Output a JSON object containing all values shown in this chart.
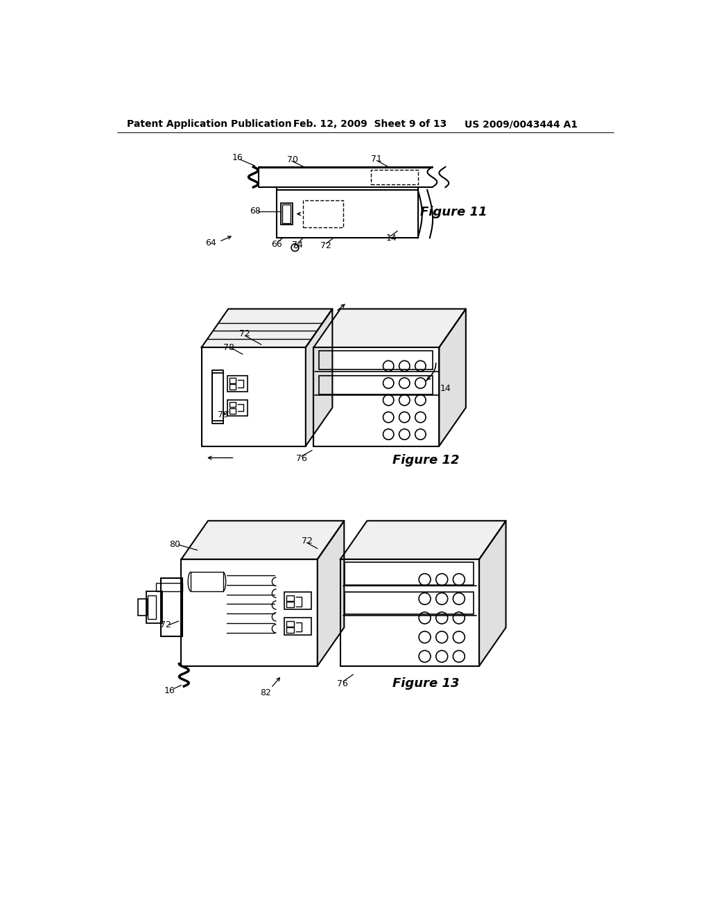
{
  "bg_color": "#ffffff",
  "header_left": "Patent Application Publication",
  "header_mid": "Feb. 12, 2009  Sheet 9 of 13",
  "header_right": "US 2009/0043444 A1",
  "fig11_title": "Figure 11",
  "fig12_title": "Figure 12",
  "fig13_title": "Figure 13",
  "font_size_header": 10,
  "font_size_label": 9,
  "font_size_fig": 13
}
